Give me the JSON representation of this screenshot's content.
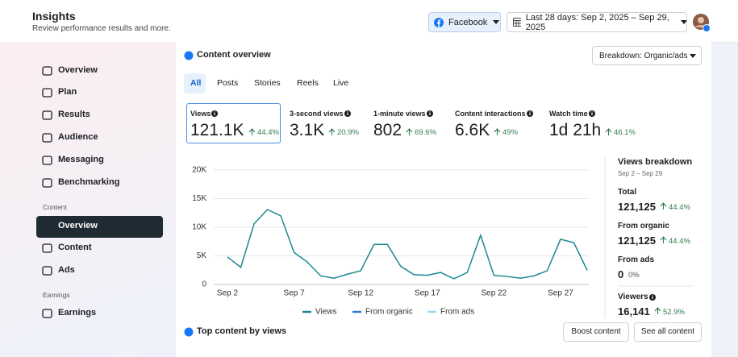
{
  "header": {
    "title": "Insights",
    "subtitle": "Review performance results and more.",
    "platform": "Facebook",
    "date_range": "Last 28 days: Sep 2, 2025 – Sep 29, 2025"
  },
  "sidebar": {
    "items": [
      "Overview",
      "Plan",
      "Results",
      "Audience",
      "Messaging",
      "Benchmarking"
    ],
    "sections": [
      {
        "label": "Content",
        "items": [
          "Overview",
          "Content",
          "Ads"
        ]
      },
      {
        "label": "Earnings",
        "items": [
          "Earnings"
        ]
      }
    ]
  },
  "content_overview": {
    "title": "Content overview",
    "breakdown": "Breakdown: Organic/ads",
    "tabs": [
      "All",
      "Posts",
      "Stories",
      "Reels",
      "Live"
    ],
    "metrics": [
      {
        "label": "Views",
        "value": "121.1K",
        "change": "44.4%"
      },
      {
        "label": "3-second views",
        "value": "3.1K",
        "change": "20.9%"
      },
      {
        "label": "1-minute views",
        "value": "802",
        "change": "69.6%"
      },
      {
        "label": "Content interactions",
        "value": "6.6K",
        "change": "49%"
      },
      {
        "label": "Watch time",
        "value": "1d 21h",
        "change": "46.1%"
      }
    ]
  },
  "breakdown_panel": {
    "title": "Views breakdown",
    "date_range": "Sep 2 – Sep 29",
    "rows": [
      {
        "label": "Total",
        "value": "121,125",
        "change": "44.4%"
      },
      {
        "label": "From organic",
        "value": "121,125",
        "change": "44.4%"
      },
      {
        "label": "From ads",
        "value": "0",
        "change": "0%"
      },
      {
        "label": "Viewers",
        "value": "16,141",
        "change": "52.9%"
      }
    ]
  },
  "top_content": {
    "title": "Top content by views",
    "buttons": [
      "Boost content",
      "See all content"
    ]
  },
  "chart_data": {
    "type": "line",
    "categories": [
      "Sep 2",
      null,
      null,
      null,
      null,
      "Sep 7",
      null,
      null,
      null,
      null,
      "Sep 12",
      null,
      null,
      null,
      null,
      "Sep 17",
      null,
      null,
      null,
      null,
      "Sep 22",
      null,
      null,
      null,
      null,
      "Sep 27",
      null,
      null
    ],
    "series": [
      {
        "name": "Views",
        "color": "#1b8a8f",
        "values": [
          4800,
          3000,
          10600,
          13100,
          12000,
          5600,
          3900,
          1500,
          1100,
          1800,
          2400,
          7000,
          7000,
          3200,
          1700,
          1600,
          2100,
          1000,
          2100,
          8600,
          1600,
          1400,
          1100,
          1500,
          2400,
          7900,
          7300,
          2500
        ]
      }
    ],
    "legend": [
      {
        "name": "Views",
        "color": "#1b8a8f"
      },
      {
        "name": "From organic",
        "color": "#2e7fd6"
      },
      {
        "name": "From ads",
        "color": "#9fd4f3"
      }
    ],
    "ylim": [
      0,
      20000
    ],
    "yticks": [
      0,
      {
        "value": 5000,
        "label": "5K"
      },
      {
        "value": 10000,
        "label": "10K"
      },
      {
        "value": 15000,
        "label": "15K"
      },
      {
        "value": 20000,
        "label": "20K"
      }
    ],
    "grid": true
  }
}
